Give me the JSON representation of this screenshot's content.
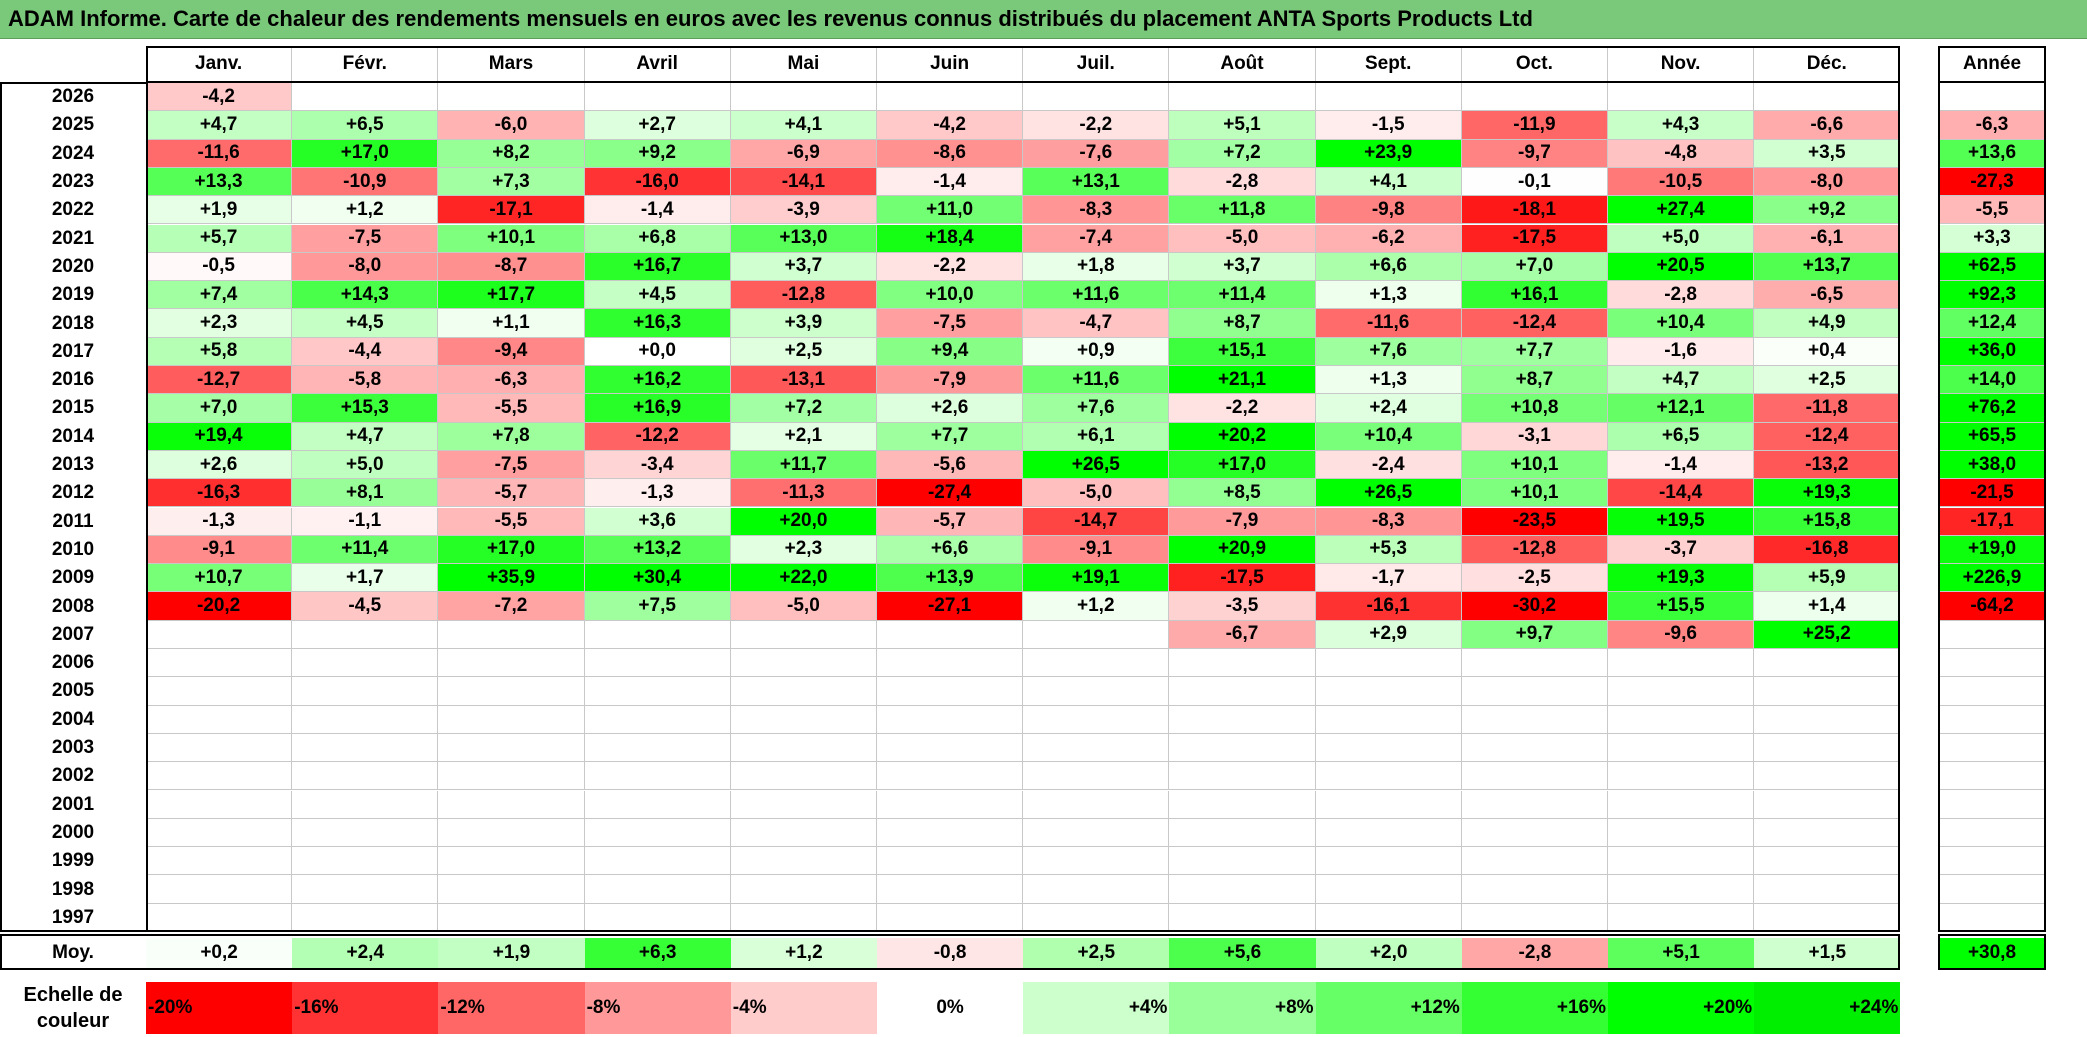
{
  "title": "ADAM Informe. Carte de chaleur des rendements mensuels en euros avec les revenus connus distribués du placement ANTA Sports Products Ltd",
  "chart_data": {
    "type": "heatmap",
    "title": "ADAM Informe. Carte de chaleur des rendements mensuels en euros avec les revenus connus distribués du placement ANTA Sports Products Ltd",
    "months": [
      "Janv.",
      "Févr.",
      "Mars",
      "Avril",
      "Mai",
      "Juin",
      "Juil.",
      "Août",
      "Sept.",
      "Oct.",
      "Nov.",
      "Déc."
    ],
    "year_header": "Année",
    "rows": [
      {
        "year": "2026",
        "values": [
          "-4,2",
          "",
          "",
          "",
          "",
          "",
          "",
          "",
          "",
          "",
          "",
          ""
        ],
        "annual": ""
      },
      {
        "year": "2025",
        "values": [
          "+4,7",
          "+6,5",
          "-6,0",
          "+2,7",
          "+4,1",
          "-4,2",
          "-2,2",
          "+5,1",
          "-1,5",
          "-11,9",
          "+4,3",
          "-6,6"
        ],
        "annual": "-6,3"
      },
      {
        "year": "2024",
        "values": [
          "-11,6",
          "+17,0",
          "+8,2",
          "+9,2",
          "-6,9",
          "-8,6",
          "-7,6",
          "+7,2",
          "+23,9",
          "-9,7",
          "-4,8",
          "+3,5"
        ],
        "annual": "+13,6"
      },
      {
        "year": "2023",
        "values": [
          "+13,3",
          "-10,9",
          "+7,3",
          "-16,0",
          "-14,1",
          "-1,4",
          "+13,1",
          "-2,8",
          "+4,1",
          "-0,1",
          "-10,5",
          "-8,0"
        ],
        "annual": "-27,3"
      },
      {
        "year": "2022",
        "values": [
          "+1,9",
          "+1,2",
          "-17,1",
          "-1,4",
          "-3,9",
          "+11,0",
          "-8,3",
          "+11,8",
          "-9,8",
          "-18,1",
          "+27,4",
          "+9,2"
        ],
        "annual": "-5,5"
      },
      {
        "year": "2021",
        "values": [
          "+5,7",
          "-7,5",
          "+10,1",
          "+6,8",
          "+13,0",
          "+18,4",
          "-7,4",
          "-5,0",
          "-6,2",
          "-17,5",
          "+5,0",
          "-6,1"
        ],
        "annual": "+3,3"
      },
      {
        "year": "2020",
        "values": [
          "-0,5",
          "-8,0",
          "-8,7",
          "+16,7",
          "+3,7",
          "-2,2",
          "+1,8",
          "+3,7",
          "+6,6",
          "+7,0",
          "+20,5",
          "+13,7"
        ],
        "annual": "+62,5"
      },
      {
        "year": "2019",
        "values": [
          "+7,4",
          "+14,3",
          "+17,7",
          "+4,5",
          "-12,8",
          "+10,0",
          "+11,6",
          "+11,4",
          "+1,3",
          "+16,1",
          "-2,8",
          "-6,5"
        ],
        "annual": "+92,3"
      },
      {
        "year": "2018",
        "values": [
          "+2,3",
          "+4,5",
          "+1,1",
          "+16,3",
          "+3,9",
          "-7,5",
          "-4,7",
          "+8,7",
          "-11,6",
          "-12,4",
          "+10,4",
          "+4,9"
        ],
        "annual": "+12,4"
      },
      {
        "year": "2017",
        "values": [
          "+5,8",
          "-4,4",
          "-9,4",
          "+0,0",
          "+2,5",
          "+9,4",
          "+0,9",
          "+15,1",
          "+7,6",
          "+7,7",
          "-1,6",
          "+0,4"
        ],
        "annual": "+36,0"
      },
      {
        "year": "2016",
        "values": [
          "-12,7",
          "-5,8",
          "-6,3",
          "+16,2",
          "-13,1",
          "-7,9",
          "+11,6",
          "+21,1",
          "+1,3",
          "+8,7",
          "+4,7",
          "+2,5"
        ],
        "annual": "+14,0"
      },
      {
        "year": "2015",
        "values": [
          "+7,0",
          "+15,3",
          "-5,5",
          "+16,9",
          "+7,2",
          "+2,6",
          "+7,6",
          "-2,2",
          "+2,4",
          "+10,8",
          "+12,1",
          "-11,8"
        ],
        "annual": "+76,2"
      },
      {
        "year": "2014",
        "values": [
          "+19,4",
          "+4,7",
          "+7,8",
          "-12,2",
          "+2,1",
          "+7,7",
          "+6,1",
          "+20,2",
          "+10,4",
          "-3,1",
          "+6,5",
          "-12,4"
        ],
        "annual": "+65,5"
      },
      {
        "year": "2013",
        "values": [
          "+2,6",
          "+5,0",
          "-7,5",
          "-3,4",
          "+11,7",
          "-5,6",
          "+26,5",
          "+17,0",
          "-2,4",
          "+10,1",
          "-1,4",
          "-13,2"
        ],
        "annual": "+38,0"
      },
      {
        "year": "2012",
        "values": [
          "-16,3",
          "+8,1",
          "-5,7",
          "-1,3",
          "-11,3",
          "-27,4",
          "-5,0",
          "+8,5",
          "+26,5",
          "+10,1",
          "-14,4",
          "+19,3"
        ],
        "annual": "-21,5"
      },
      {
        "year": "2011",
        "values": [
          "-1,3",
          "-1,1",
          "-5,5",
          "+3,6",
          "+20,0",
          "-5,7",
          "-14,7",
          "-7,9",
          "-8,3",
          "-23,5",
          "+19,5",
          "+15,8"
        ],
        "annual": "-17,1"
      },
      {
        "year": "2010",
        "values": [
          "-9,1",
          "+11,4",
          "+17,0",
          "+13,2",
          "+2,3",
          "+6,6",
          "-9,1",
          "+20,9",
          "+5,3",
          "-12,8",
          "-3,7",
          "-16,8"
        ],
        "annual": "+19,0"
      },
      {
        "year": "2009",
        "values": [
          "+10,7",
          "+1,7",
          "+35,9",
          "+30,4",
          "+22,0",
          "+13,9",
          "+19,1",
          "-17,5",
          "-1,7",
          "-2,5",
          "+19,3",
          "+5,9"
        ],
        "annual": "+226,9"
      },
      {
        "year": "2008",
        "values": [
          "-20,2",
          "-4,5",
          "-7,2",
          "+7,5",
          "-5,0",
          "-27,1",
          "+1,2",
          "-3,5",
          "-16,1",
          "-30,2",
          "+15,5",
          "+1,4"
        ],
        "annual": "-64,2"
      },
      {
        "year": "2007",
        "values": [
          "",
          "",
          "",
          "",
          "",
          "",
          "",
          "-6,7",
          "+2,9",
          "+9,7",
          "-9,6",
          "+25,2"
        ],
        "annual": ""
      },
      {
        "year": "2006",
        "values": [
          "",
          "",
          "",
          "",
          "",
          "",
          "",
          "",
          "",
          "",
          "",
          ""
        ],
        "annual": ""
      },
      {
        "year": "2005",
        "values": [
          "",
          "",
          "",
          "",
          "",
          "",
          "",
          "",
          "",
          "",
          "",
          ""
        ],
        "annual": ""
      },
      {
        "year": "2004",
        "values": [
          "",
          "",
          "",
          "",
          "",
          "",
          "",
          "",
          "",
          "",
          "",
          ""
        ],
        "annual": ""
      },
      {
        "year": "2003",
        "values": [
          "",
          "",
          "",
          "",
          "",
          "",
          "",
          "",
          "",
          "",
          "",
          ""
        ],
        "annual": ""
      },
      {
        "year": "2002",
        "values": [
          "",
          "",
          "",
          "",
          "",
          "",
          "",
          "",
          "",
          "",
          "",
          ""
        ],
        "annual": ""
      },
      {
        "year": "2001",
        "values": [
          "",
          "",
          "",
          "",
          "",
          "",
          "",
          "",
          "",
          "",
          "",
          ""
        ],
        "annual": ""
      },
      {
        "year": "2000",
        "values": [
          "",
          "",
          "",
          "",
          "",
          "",
          "",
          "",
          "",
          "",
          "",
          ""
        ],
        "annual": ""
      },
      {
        "year": "1999",
        "values": [
          "",
          "",
          "",
          "",
          "",
          "",
          "",
          "",
          "",
          "",
          "",
          ""
        ],
        "annual": ""
      },
      {
        "year": "1998",
        "values": [
          "",
          "",
          "",
          "",
          "",
          "",
          "",
          "",
          "",
          "",
          "",
          ""
        ],
        "annual": ""
      },
      {
        "year": "1997",
        "values": [
          "",
          "",
          "",
          "",
          "",
          "",
          "",
          "",
          "",
          "",
          "",
          ""
        ],
        "annual": ""
      }
    ],
    "average": {
      "label": "Moy.",
      "values": [
        "+0,2",
        "+2,4",
        "+1,9",
        "+6,3",
        "+1,2",
        "-0,8",
        "+2,5",
        "+5,6",
        "+2,0",
        "-2,8",
        "+5,1",
        "+1,5"
      ],
      "annual": "+30,8"
    },
    "color_scale": {
      "label_line1": "Echelle de",
      "label_line2": "couleur",
      "stops": [
        {
          "label": "-20%",
          "value": -20,
          "color": "#ff0000"
        },
        {
          "label": "-16%",
          "value": -16,
          "color": "#ff3333"
        },
        {
          "label": "-12%",
          "value": -12,
          "color": "#ff6666"
        },
        {
          "label": "-8%",
          "value": -8,
          "color": "#ff9999"
        },
        {
          "label": "-4%",
          "value": -4,
          "color": "#ffcccc"
        },
        {
          "label": "0%",
          "value": 0,
          "color": "#ffffff"
        },
        {
          "label": "+4%",
          "value": 4,
          "color": "#ccffcc"
        },
        {
          "label": "+8%",
          "value": 8,
          "color": "#99ff99"
        },
        {
          "label": "+12%",
          "value": 12,
          "color": "#66ff66"
        },
        {
          "label": "+16%",
          "value": 16,
          "color": "#33ff33"
        },
        {
          "label": "+20%",
          "value": 20,
          "color": "#00ff00"
        },
        {
          "label": "+24%",
          "value": 24,
          "color": "#00ee00"
        }
      ]
    },
    "colors": {
      "title_bar": "#7ac87a",
      "negative_max": "#ff0000",
      "positive_max": "#00ff00"
    }
  }
}
